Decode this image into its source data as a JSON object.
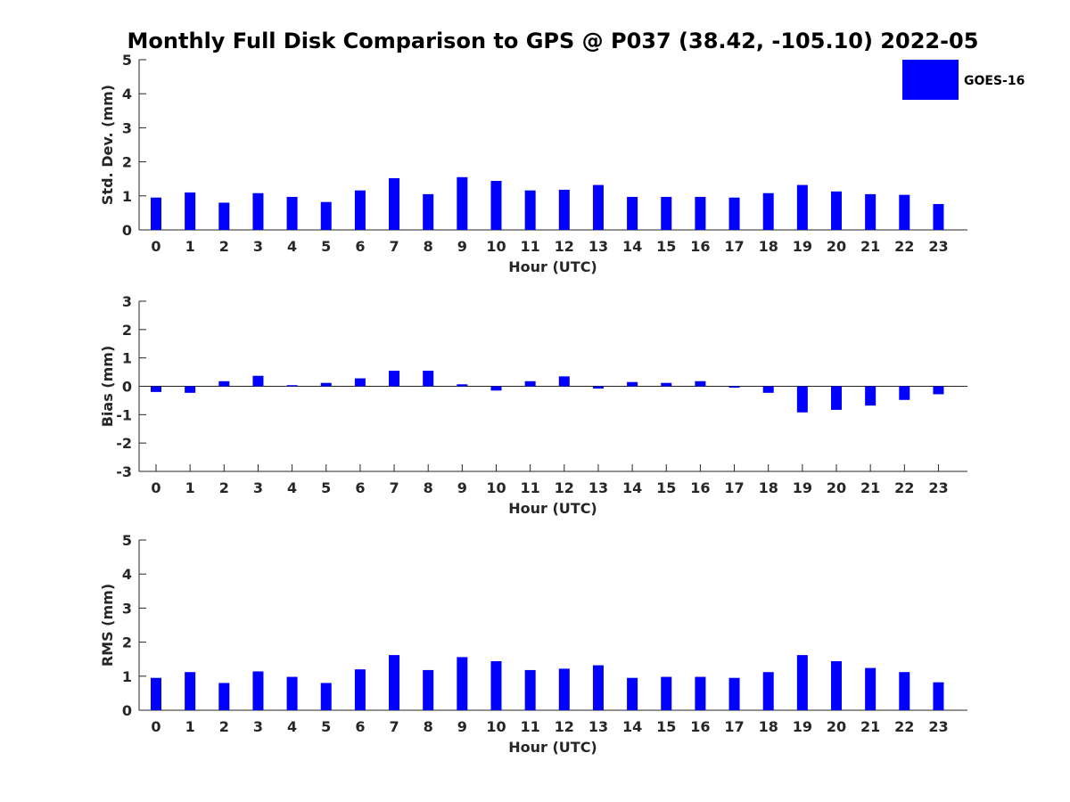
{
  "title": "Monthly Full Disk Comparison to GPS @ P037 (38.42, -105.10) 2022-05",
  "legend": {
    "label": "GOES-16",
    "color": "#0000ff"
  },
  "chart_data": [
    {
      "type": "bar",
      "ylabel": "Std. Dev. (mm)",
      "xlabel": "Hour (UTC)",
      "ylim": [
        0,
        5
      ],
      "yticks": [
        "0",
        "1",
        "2",
        "3",
        "4",
        "5"
      ],
      "categories": [
        "0",
        "1",
        "2",
        "3",
        "4",
        "5",
        "6",
        "7",
        "8",
        "9",
        "10",
        "11",
        "12",
        "13",
        "14",
        "15",
        "16",
        "17",
        "18",
        "19",
        "20",
        "21",
        "22",
        "23"
      ],
      "series": [
        {
          "name": "GOES-16",
          "color": "#0000ff",
          "values": [
            0.95,
            1.1,
            0.8,
            1.08,
            0.97,
            0.82,
            1.16,
            1.52,
            1.05,
            1.55,
            1.44,
            1.16,
            1.18,
            1.32,
            0.97,
            0.97,
            0.97,
            0.95,
            1.08,
            1.32,
            1.13,
            1.05,
            1.03,
            0.76
          ]
        }
      ]
    },
    {
      "type": "bar",
      "ylabel": "Bias (mm)",
      "xlabel": "Hour (UTC)",
      "ylim": [
        -3,
        3
      ],
      "yticks": [
        "-3",
        "-2",
        "-1",
        "0",
        "1",
        "2",
        "3"
      ],
      "categories": [
        "0",
        "1",
        "2",
        "3",
        "4",
        "5",
        "6",
        "7",
        "8",
        "9",
        "10",
        "11",
        "12",
        "13",
        "14",
        "15",
        "16",
        "17",
        "18",
        "19",
        "20",
        "21",
        "22",
        "23"
      ],
      "series": [
        {
          "name": "GOES-16",
          "color": "#0000ff",
          "values": [
            -0.2,
            -0.23,
            0.18,
            0.37,
            0.04,
            0.12,
            0.28,
            0.55,
            0.55,
            0.07,
            -0.15,
            0.18,
            0.35,
            -0.08,
            0.15,
            0.12,
            0.18,
            -0.05,
            -0.23,
            -0.92,
            -0.83,
            -0.68,
            -0.48,
            -0.28
          ]
        }
      ]
    },
    {
      "type": "bar",
      "ylabel": "RMS (mm)",
      "xlabel": "Hour (UTC)",
      "ylim": [
        0,
        5
      ],
      "yticks": [
        "0",
        "1",
        "2",
        "3",
        "4",
        "5"
      ],
      "categories": [
        "0",
        "1",
        "2",
        "3",
        "4",
        "5",
        "6",
        "7",
        "8",
        "9",
        "10",
        "11",
        "12",
        "13",
        "14",
        "15",
        "16",
        "17",
        "18",
        "19",
        "20",
        "21",
        "22",
        "23"
      ],
      "series": [
        {
          "name": "GOES-16",
          "color": "#0000ff",
          "values": [
            0.95,
            1.12,
            0.8,
            1.14,
            0.98,
            0.8,
            1.2,
            1.62,
            1.18,
            1.56,
            1.44,
            1.18,
            1.22,
            1.32,
            0.95,
            0.98,
            0.98,
            0.95,
            1.12,
            1.62,
            1.44,
            1.24,
            1.12,
            0.82
          ]
        }
      ]
    }
  ]
}
